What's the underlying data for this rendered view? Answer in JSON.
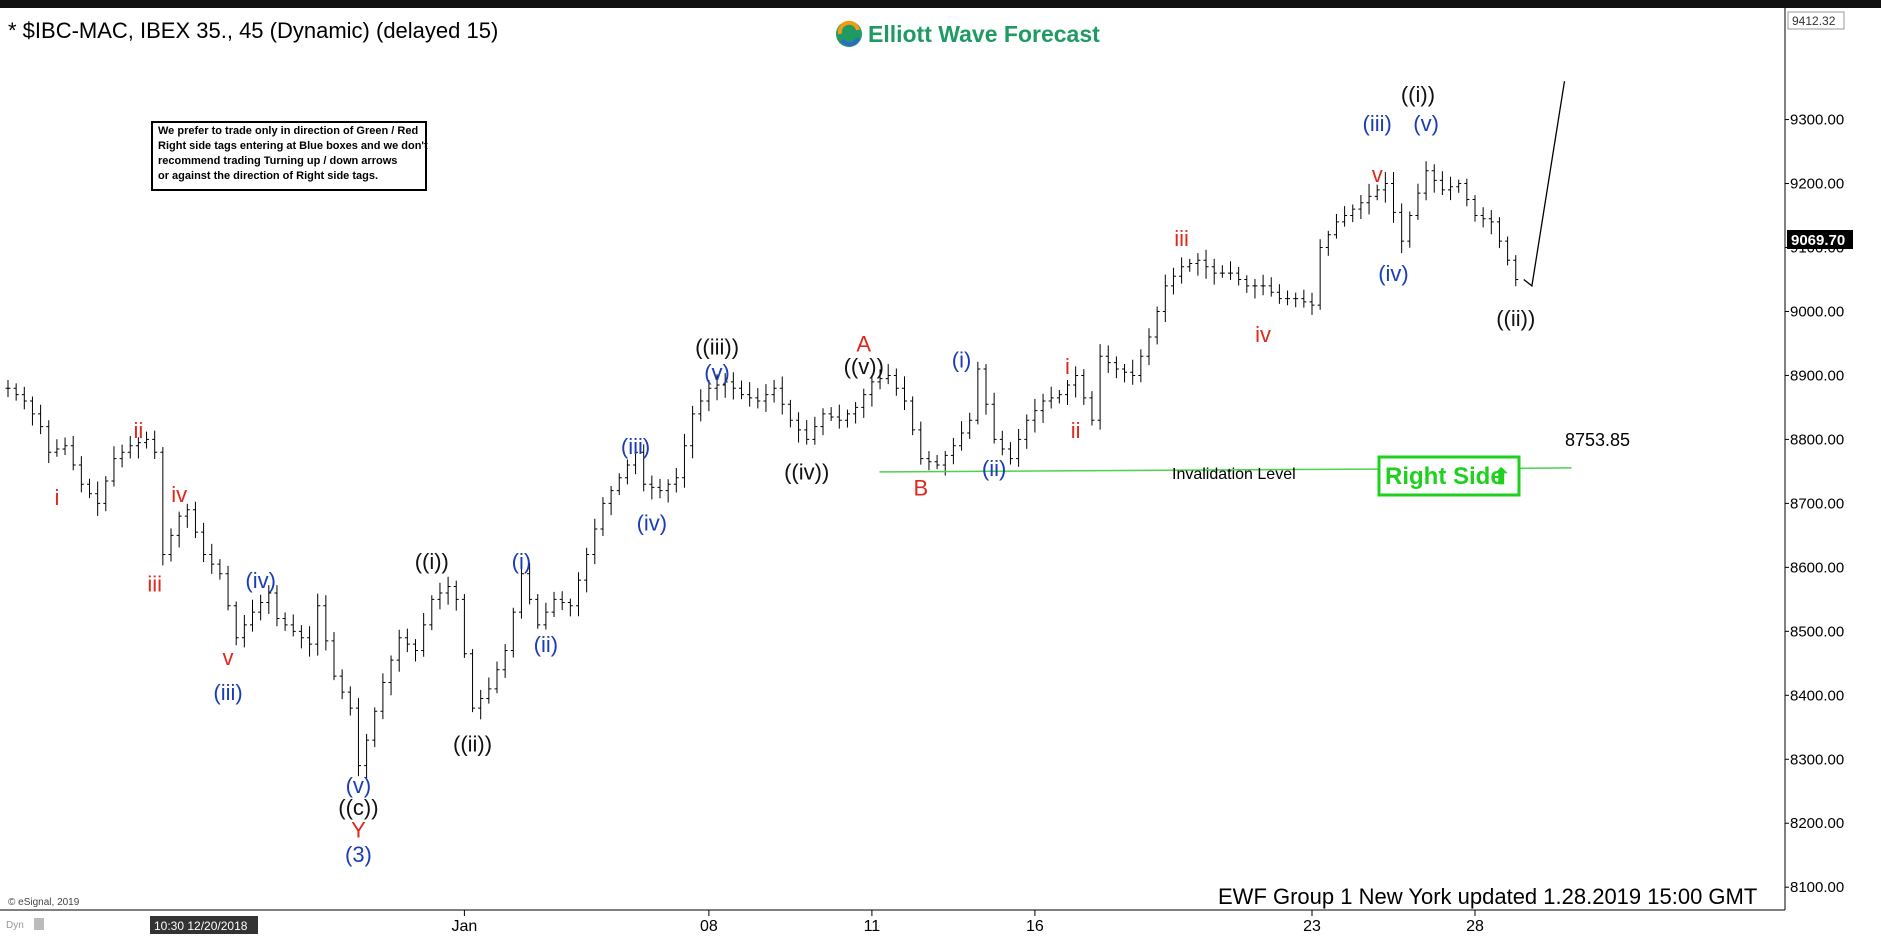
{
  "header": {
    "title": "* $IBC-MAC, IBEX 35., 45 (Dynamic) (delayed 15)",
    "brand": "Elliott Wave Forecast"
  },
  "note": {
    "lines": [
      "We prefer to trade only in direction of Green / Red",
      "Right side tags entering at Blue boxes and we don't",
      "recommend trading Turning up / down arrows",
      "or against the direction of Right side tags."
    ]
  },
  "price_axis": {
    "top_label": "9412.32",
    "current_label": "9069.70"
  },
  "footer": {
    "updated": "EWF Group 1 New York updated 1.28.2019 15:00 GMT",
    "copyright": "© eSignal, 2019",
    "dyn": "Dyn",
    "cursor_time": "10:30 12/20/2018"
  },
  "invalidation": {
    "label": "Invalidation Level",
    "level_text": "8753.85",
    "value": 8753.85
  },
  "right_side": {
    "label": "Right Side",
    "arrow": "⬆"
  },
  "colors": {
    "red": "#e0271d",
    "blue": "#1a3cb8",
    "black": "#111111",
    "invalidation": "#4cd34c",
    "right_side": "#1ed11e",
    "brand": "#1f9a63"
  },
  "chart_data": {
    "type": "ohlc",
    "ylim": [
      8080,
      9440
    ],
    "y_ticks": [
      8100,
      8200,
      8300,
      8400,
      8500,
      8600,
      8700,
      8800,
      8900,
      9000,
      9100,
      9200,
      9300
    ],
    "y_tick_labels": [
      "8100.00",
      "8200.00",
      "8300.00",
      "8400.00",
      "8500.00",
      "8600.00",
      "8700.00",
      "8800.00",
      "8900.00",
      "9000.00",
      "9100.00",
      "9200.00",
      "9300.00"
    ],
    "x_ticks": [
      {
        "label": "Jan",
        "bar": 56
      },
      {
        "label": "08",
        "bar": 86
      },
      {
        "label": "11",
        "bar": 106
      },
      {
        "label": "16",
        "bar": 126
      },
      {
        "label": "23",
        "bar": 160
      },
      {
        "label": "28",
        "bar": 180
      }
    ],
    "close_path": [
      [
        0,
        8880
      ],
      [
        2,
        8860
      ],
      [
        4,
        8820
      ],
      [
        5,
        8780
      ],
      [
        7,
        8790
      ],
      [
        9,
        8730
      ],
      [
        11,
        8700
      ],
      [
        13,
        8770
      ],
      [
        15,
        8790
      ],
      [
        17,
        8800
      ],
      [
        18,
        8780
      ],
      [
        19,
        8620
      ],
      [
        21,
        8680
      ],
      [
        22,
        8690
      ],
      [
        24,
        8620
      ],
      [
        26,
        8590
      ],
      [
        28,
        8490
      ],
      [
        30,
        8530
      ],
      [
        32,
        8560
      ],
      [
        33,
        8520
      ],
      [
        35,
        8500
      ],
      [
        37,
        8480
      ],
      [
        38,
        8540
      ],
      [
        40,
        8430
      ],
      [
        42,
        8380
      ],
      [
        43,
        8290
      ],
      [
        44,
        8330
      ],
      [
        46,
        8420
      ],
      [
        48,
        8490
      ],
      [
        50,
        8470
      ],
      [
        52,
        8550
      ],
      [
        54,
        8570
      ],
      [
        55,
        8550
      ],
      [
        57,
        8380
      ],
      [
        59,
        8410
      ],
      [
        61,
        8470
      ],
      [
        63,
        8590
      ],
      [
        65,
        8510
      ],
      [
        67,
        8550
      ],
      [
        69,
        8540
      ],
      [
        71,
        8620
      ],
      [
        73,
        8700
      ],
      [
        75,
        8740
      ],
      [
        77,
        8780
      ],
      [
        78,
        8730
      ],
      [
        80,
        8720
      ],
      [
        82,
        8740
      ],
      [
        84,
        8840
      ],
      [
        86,
        8880
      ],
      [
        88,
        8890
      ],
      [
        90,
        8870
      ],
      [
        92,
        8860
      ],
      [
        94,
        8880
      ],
      [
        96,
        8830
      ],
      [
        98,
        8800
      ],
      [
        100,
        8840
      ],
      [
        102,
        8830
      ],
      [
        104,
        8850
      ],
      [
        106,
        8890
      ],
      [
        108,
        8900
      ],
      [
        110,
        8860
      ],
      [
        112,
        8770
      ],
      [
        114,
        8760
      ],
      [
        116,
        8790
      ],
      [
        118,
        8830
      ],
      [
        119,
        8910
      ],
      [
        121,
        8800
      ],
      [
        123,
        8770
      ],
      [
        125,
        8830
      ],
      [
        127,
        8860
      ],
      [
        129,
        8870
      ],
      [
        131,
        8900
      ],
      [
        133,
        8830
      ],
      [
        134,
        8930
      ],
      [
        136,
        8910
      ],
      [
        138,
        8900
      ],
      [
        140,
        8960
      ],
      [
        142,
        9040
      ],
      [
        144,
        9070
      ],
      [
        146,
        9080
      ],
      [
        148,
        9060
      ],
      [
        150,
        9060
      ],
      [
        152,
        9040
      ],
      [
        154,
        9040
      ],
      [
        156,
        9020
      ],
      [
        158,
        9020
      ],
      [
        160,
        9010
      ],
      [
        161,
        9100
      ],
      [
        163,
        9140
      ],
      [
        165,
        9160
      ],
      [
        167,
        9180
      ],
      [
        169,
        9200
      ],
      [
        171,
        9110
      ],
      [
        172,
        9150
      ],
      [
        174,
        9220
      ],
      [
        176,
        9190
      ],
      [
        178,
        9200
      ],
      [
        180,
        9150
      ],
      [
        182,
        9140
      ],
      [
        184,
        9080
      ],
      [
        185,
        9050
      ]
    ],
    "projection": [
      [
        185,
        9050
      ],
      [
        186,
        9040
      ],
      [
        190,
        9360
      ]
    ],
    "invalidation_line": {
      "from_bar": 110,
      "to_bar": 184,
      "value": 8753.85
    },
    "labels": [
      {
        "text": "i",
        "bar": 6,
        "price": 8710,
        "color": "red"
      },
      {
        "text": "ii",
        "bar": 16,
        "price": 8815,
        "color": "red"
      },
      {
        "text": "iv",
        "bar": 21,
        "price": 8715,
        "color": "red"
      },
      {
        "text": "iii",
        "bar": 18,
        "price": 8575,
        "color": "red"
      },
      {
        "text": "(iv)",
        "bar": 31,
        "price": 8580,
        "color": "blue"
      },
      {
        "text": "v",
        "bar": 27,
        "price": 8460,
        "color": "red"
      },
      {
        "text": "(iii)",
        "bar": 27,
        "price": 8405,
        "color": "blue"
      },
      {
        "text": "(v)",
        "bar": 43,
        "price": 8260,
        "color": "blue"
      },
      {
        "text": "((c))",
        "bar": 43,
        "price": 8225,
        "color": "black"
      },
      {
        "text": "Y",
        "bar": 43,
        "price": 8190,
        "color": "red"
      },
      {
        "text": "(3)",
        "bar": 43,
        "price": 8152,
        "color": "blue"
      },
      {
        "text": "((i))",
        "bar": 52,
        "price": 8610,
        "color": "black"
      },
      {
        "text": "((ii))",
        "bar": 57,
        "price": 8325,
        "color": "black"
      },
      {
        "text": "(i)",
        "bar": 63,
        "price": 8610,
        "color": "blue"
      },
      {
        "text": "(ii)",
        "bar": 66,
        "price": 8480,
        "color": "blue"
      },
      {
        "text": "(iii)",
        "bar": 77,
        "price": 8790,
        "color": "blue"
      },
      {
        "text": "(iv)",
        "bar": 79,
        "price": 8670,
        "color": "blue"
      },
      {
        "text": "((iii))",
        "bar": 87,
        "price": 8945,
        "color": "black"
      },
      {
        "text": "(v)",
        "bar": 87,
        "price": 8905,
        "color": "blue"
      },
      {
        "text": "((iv))",
        "bar": 98,
        "price": 8750,
        "color": "black"
      },
      {
        "text": "A",
        "bar": 105,
        "price": 8950,
        "color": "red"
      },
      {
        "text": "((v))",
        "bar": 105,
        "price": 8915,
        "color": "black"
      },
      {
        "text": "(i)",
        "bar": 117,
        "price": 8925,
        "color": "blue"
      },
      {
        "text": "B",
        "bar": 112,
        "price": 8725,
        "color": "red"
      },
      {
        "text": "(ii)",
        "bar": 121,
        "price": 8755,
        "color": "blue"
      },
      {
        "text": "i",
        "bar": 130,
        "price": 8915,
        "color": "red"
      },
      {
        "text": "ii",
        "bar": 131,
        "price": 8815,
        "color": "red"
      },
      {
        "text": "iii",
        "bar": 144,
        "price": 9115,
        "color": "red"
      },
      {
        "text": "iv",
        "bar": 154,
        "price": 8965,
        "color": "red"
      },
      {
        "text": "(iii)",
        "bar": 168,
        "price": 9295,
        "color": "blue"
      },
      {
        "text": "v",
        "bar": 168,
        "price": 9215,
        "color": "red"
      },
      {
        "text": "((i))",
        "bar": 173,
        "price": 9340,
        "color": "black"
      },
      {
        "text": "(v)",
        "bar": 174,
        "price": 9295,
        "color": "blue"
      },
      {
        "text": "(iv)",
        "bar": 170,
        "price": 9060,
        "color": "blue"
      },
      {
        "text": "((ii))",
        "bar": 185,
        "price": 8990,
        "color": "black"
      }
    ]
  }
}
